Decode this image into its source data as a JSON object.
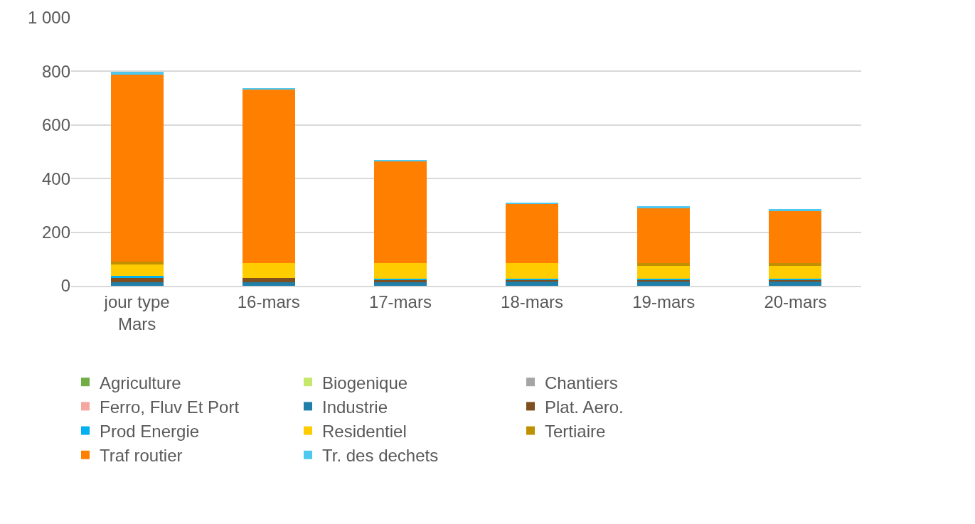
{
  "chart_data": {
    "type": "bar",
    "stacked": true,
    "categories": [
      "jour type Mars",
      "16-mars",
      "17-mars",
      "18-mars",
      "19-mars",
      "20-mars"
    ],
    "series": [
      {
        "name": "Agriculture",
        "color": "#70ad47",
        "values": [
          0,
          0,
          0,
          0,
          0,
          0
        ]
      },
      {
        "name": "Biogenique",
        "color": "#c5e86c",
        "values": [
          0,
          0,
          0,
          0,
          0,
          0
        ]
      },
      {
        "name": "Chantiers",
        "color": "#a5a5a5",
        "values": [
          0,
          0,
          0,
          0,
          0,
          0
        ]
      },
      {
        "name": "Ferro, Fluv Et Port",
        "color": "#f4a6a0",
        "values": [
          0,
          0,
          0,
          0,
          0,
          0
        ]
      },
      {
        "name": "Industrie",
        "color": "#1f7fa8",
        "values": [
          12,
          12,
          12,
          15,
          15,
          15
        ]
      },
      {
        "name": "Plat. Aero.",
        "color": "#7f4f1f",
        "values": [
          16,
          16,
          9,
          7,
          7,
          7
        ]
      },
      {
        "name": "Prod Energie",
        "color": "#00b0f0",
        "values": [
          8,
          0,
          6,
          5,
          5,
          5
        ]
      },
      {
        "name": "Residentiel",
        "color": "#ffcc00",
        "values": [
          43,
          58,
          58,
          58,
          48,
          48
        ]
      },
      {
        "name": "Tertiaire",
        "color": "#bf9000",
        "values": [
          10,
          0,
          0,
          0,
          10,
          10
        ]
      },
      {
        "name": "Traf routier",
        "color": "#ff7f00",
        "values": [
          698,
          645,
          378,
          222,
          205,
          194
        ]
      },
      {
        "name": "Tr. des dechets",
        "color": "#4fc8f0",
        "values": [
          11,
          7,
          6,
          4,
          6,
          7
        ]
      }
    ],
    "ylim": [
      0,
      1000
    ],
    "yticks": [
      0,
      200,
      400,
      600,
      800,
      {
        "value": 1000,
        "label": "1 000"
      }
    ],
    "grid": "y",
    "legend": "bottom"
  }
}
